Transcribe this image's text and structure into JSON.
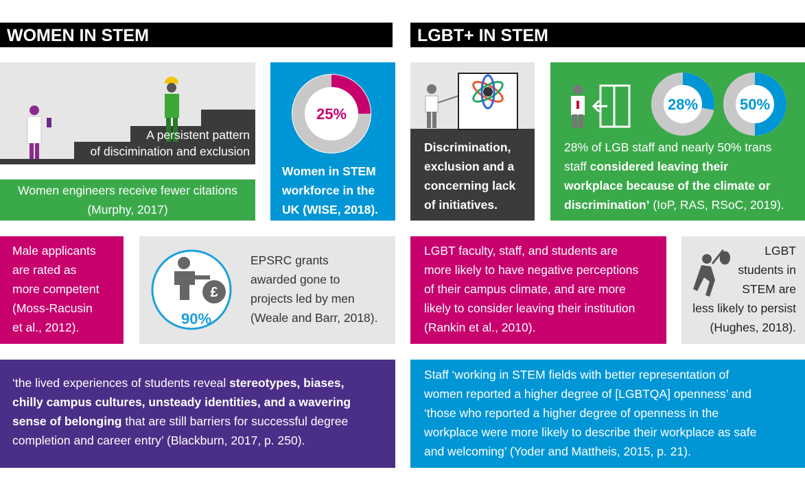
{
  "women": {
    "title": "WOMEN IN STEM",
    "pattern": {
      "lines": [
        "A persistent pattern",
        "of discimination and exclusion"
      ]
    },
    "citations": {
      "lines": [
        "Women engineers receive fewer citations",
        "(Murphy, 2017)"
      ]
    },
    "workforce": {
      "donut": {
        "value": 25,
        "label": "25%"
      },
      "lines": [
        "Women in STEM",
        "workforce in the",
        "UK (WISE, 2018)."
      ]
    },
    "applicants": {
      "lines": [
        "Male applicants",
        "are rated as",
        "more competent",
        "(Moss-Racusin",
        "et al., 2012)."
      ]
    },
    "grants": {
      "figure_label": "90%",
      "lines": [
        "EPSRC grants",
        "awarded gone to",
        "projects led by men",
        "(Weale and Barr, 2018)."
      ]
    },
    "quote": {
      "lines": [
        [
          {
            "text": "‘the lived experiences of students reveal ",
            "bold": false
          },
          {
            "text": "stereotypes, biases,",
            "bold": true
          }
        ],
        [
          {
            "text": "chilly campus cultures, unsteady identities, and a wavering",
            "bold": true
          }
        ],
        [
          {
            "text": "sense of belonging",
            "bold": true
          },
          {
            "text": " that are still barriers for successful degree",
            "bold": false
          }
        ],
        "completion and career entry’ (Blackburn, 2017, p. 250)."
      ]
    }
  },
  "lgbt": {
    "title": "LGBT+ IN STEM",
    "discrimination": {
      "lines": [
        "Discrimination,",
        "exclusion and a",
        "concerning lack",
        "of initiatives."
      ]
    },
    "leaving": {
      "donuts": [
        {
          "value": 28,
          "label": "28%"
        },
        {
          "value": 50,
          "label": "50%"
        }
      ],
      "lines": [
        "28% of LGB staff and nearly 50% trans",
        [
          {
            "text": "staff ",
            "bold": false
          },
          {
            "text": "considered leaving their",
            "bold": true
          }
        ],
        [
          {
            "text": "workplace because of the climate or",
            "bold": true
          }
        ],
        [
          {
            "text": "discrimination’",
            "bold": true
          },
          {
            "text": " (IoP, RAS, RSoC, 2019).",
            "bold": false
          }
        ]
      ]
    },
    "perceptions": {
      "lines": [
        "LGBT faculty, staff, and students are",
        "more likely to have negative perceptions",
        "of their campus climate, and are more",
        "likely to consider leaving their institution",
        "(Rankin et al., 2010)."
      ]
    },
    "persist": {
      "lines": [
        "LGBT",
        "students in",
        "STEM are",
        "less likely to persist",
        "(Hughes, 2018)."
      ]
    },
    "openness": {
      "lines": [
        "Staff ‘working in STEM fields with better representation of",
        "women reported a higher degree of [LGBTQA] openness’ and",
        "‘those who reported a higher degree of openness in the",
        "workplace were more likely to describe their workplace as safe",
        "and welcoming’ (Yoder and Mattheis, 2015, p. 21)."
      ]
    }
  }
}
